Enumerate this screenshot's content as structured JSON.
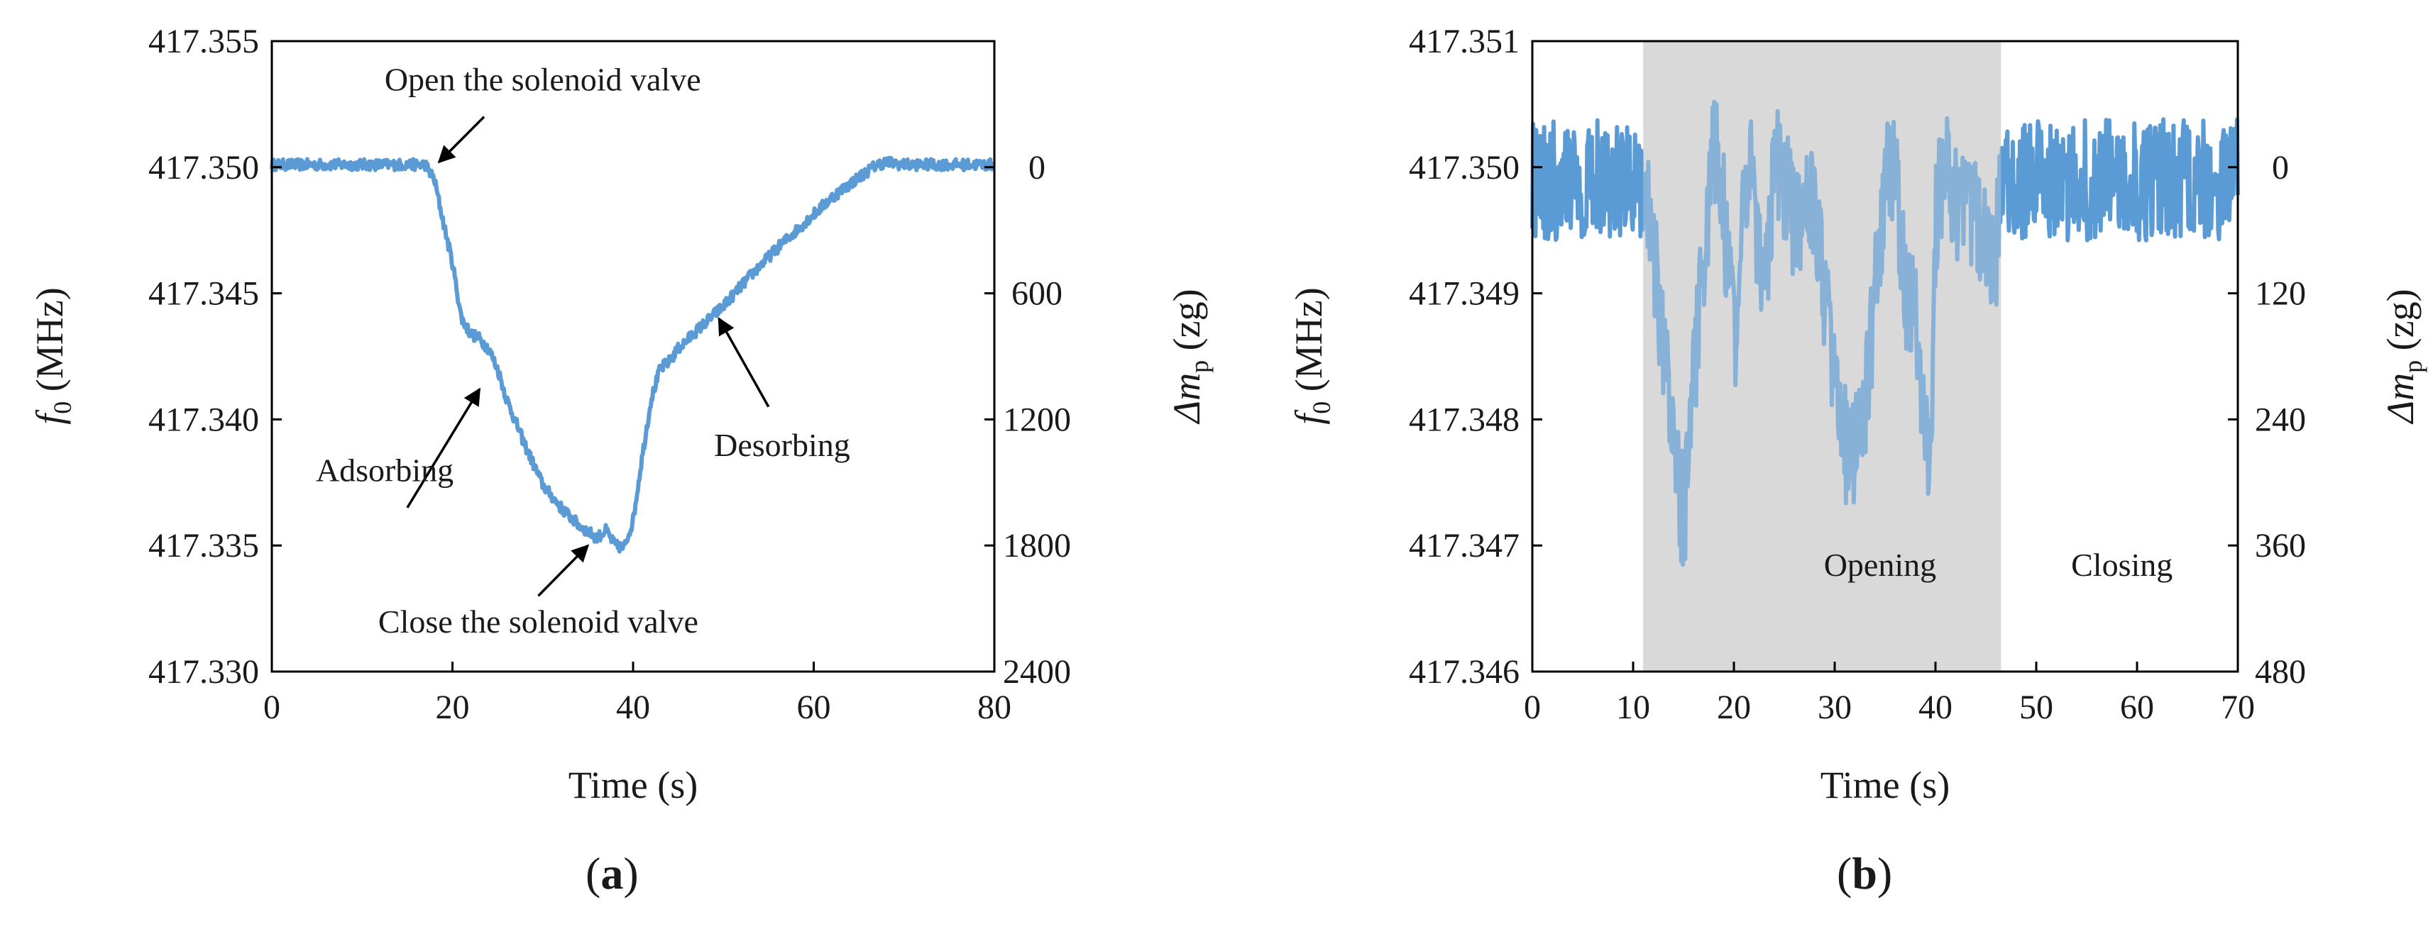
{
  "chart_data": [
    {
      "id": "a",
      "type": "line",
      "panel_label": "a",
      "xlabel": "Time (s)",
      "ylabel_left": {
        "main": "f",
        "sub": "0",
        "unit": " (MHz)"
      },
      "ylabel_right": {
        "prefix": "Δm",
        "sub": "p",
        "unit": " (zg)"
      },
      "xlim": [
        0,
        80
      ],
      "ylim": [
        417.33,
        417.355
      ],
      "xticks": [
        0,
        20,
        40,
        60,
        80
      ],
      "yticks": [
        417.33,
        417.335,
        417.34,
        417.345,
        417.35,
        417.355
      ],
      "ytick_labels": [
        "417.330",
        "417.335",
        "417.340",
        "417.345",
        "417.350",
        "417.355"
      ],
      "right_ticks": [
        {
          "label": "0",
          "y": 417.35
        },
        {
          "label": "600",
          "y": 417.345
        },
        {
          "label": "1200",
          "y": 417.34
        },
        {
          "label": "1800",
          "y": 417.335
        },
        {
          "label": "2400",
          "y": 417.33
        }
      ],
      "series": [
        {
          "name": "f0",
          "color": "#5b9bd5",
          "x": [
            0,
            17,
            18,
            19,
            20,
            21,
            22,
            23,
            24,
            25,
            26,
            28,
            30,
            32,
            34,
            36,
            37,
            38,
            39,
            40,
            41,
            42,
            43,
            44,
            45,
            47,
            50,
            53,
            56,
            59,
            62,
            65,
            67,
            68,
            70,
            75,
            80
          ],
          "y": [
            417.3501,
            417.3501,
            417.3495,
            417.3478,
            417.3462,
            417.344,
            417.3434,
            417.3432,
            417.3428,
            417.342,
            417.3408,
            417.339,
            417.3374,
            417.3365,
            417.3358,
            417.3353,
            417.3356,
            417.335,
            417.3349,
            417.336,
            417.3385,
            417.3408,
            417.342,
            417.3423,
            417.3428,
            417.3435,
            417.3445,
            417.3457,
            417.3468,
            417.3478,
            417.3488,
            417.3496,
            417.3501,
            417.3502,
            417.3501,
            417.3501,
            417.3501
          ],
          "noise": 0.00022
        }
      ],
      "annotations": [
        {
          "text": "Open the solenoid valve",
          "text_at": [
            30,
            417.3535
          ],
          "arrow_from": [
            23.5,
            417.352
          ],
          "arrow_to": [
            18.5,
            417.3502
          ]
        },
        {
          "text": "Adsorbing",
          "text_at": [
            12.5,
            417.338
          ],
          "arrow_from": [
            15,
            417.3365
          ],
          "arrow_to": [
            23,
            417.3412
          ]
        },
        {
          "text": "Close the solenoid valve",
          "text_at": [
            29.5,
            417.332
          ],
          "arrow_from": [
            29.5,
            417.333
          ],
          "arrow_to": [
            35,
            417.335
          ]
        },
        {
          "text": "Desorbing",
          "text_at": [
            56.5,
            417.339
          ],
          "arrow_from": [
            55,
            417.3405
          ],
          "arrow_to": [
            49.5,
            417.344
          ]
        }
      ]
    },
    {
      "id": "b",
      "type": "line",
      "panel_label": "b",
      "xlabel": "Time (s)",
      "ylabel_left": {
        "main": "f",
        "sub": "0",
        "unit": " (MHz)"
      },
      "ylabel_right": {
        "prefix": "Δm",
        "sub": "p",
        "unit": " (zg)"
      },
      "xlim": [
        0,
        70
      ],
      "ylim": [
        417.346,
        417.351
      ],
      "xticks": [
        0,
        10,
        20,
        30,
        40,
        50,
        60,
        70
      ],
      "yticks": [
        417.346,
        417.347,
        417.348,
        417.349,
        417.35,
        417.351
      ],
      "ytick_labels": [
        "417.346",
        "417.347",
        "417.348",
        "417.349",
        "417.350",
        "417.351"
      ],
      "right_ticks": [
        {
          "label": "0",
          "y": 417.35
        },
        {
          "label": "120",
          "y": 417.349
        },
        {
          "label": "240",
          "y": 417.348
        },
        {
          "label": "360",
          "y": 417.347
        },
        {
          "label": "480",
          "y": 417.346
        }
      ],
      "shaded_region": {
        "x0": 11,
        "x1": 46.5,
        "color": "#d9d9d9"
      },
      "series": [
        {
          "name": "f0",
          "color": "#5b9bd5",
          "x": [
            0,
            11,
            12,
            13,
            14,
            15,
            15.5,
            16,
            17,
            18,
            18.5,
            19,
            20,
            21,
            21.5,
            22,
            23,
            24,
            25,
            26,
            27,
            28,
            29,
            30,
            31,
            32,
            33,
            34,
            35,
            36,
            37,
            38,
            39,
            39.5,
            40,
            41,
            42,
            44,
            46,
            46.5,
            48,
            55,
            62,
            70
          ],
          "y": [
            417.3499,
            417.3499,
            417.3494,
            417.3485,
            417.3478,
            417.3472,
            417.3477,
            417.3483,
            417.3492,
            417.3501,
            417.3502,
            417.3496,
            417.3486,
            417.3496,
            417.3501,
            417.3497,
            417.349,
            417.35,
            417.3499,
            417.3495,
            417.3496,
            417.3497,
            417.349,
            417.3483,
            417.3478,
            417.3477,
            417.348,
            417.349,
            417.3499,
            417.35,
            417.349,
            417.3488,
            417.3478,
            417.3477,
            417.3496,
            417.35,
            417.3497,
            417.3496,
            417.3493,
            417.3499,
            417.3499,
            417.3499,
            417.3499,
            417.3499
          ],
          "noise": 0.00048
        }
      ],
      "annotations": [
        {
          "text": "Opening",
          "text_at": [
            34.5,
            417.34685
          ]
        },
        {
          "text": "Closing",
          "text_at": [
            58.5,
            417.34685
          ]
        }
      ]
    }
  ]
}
